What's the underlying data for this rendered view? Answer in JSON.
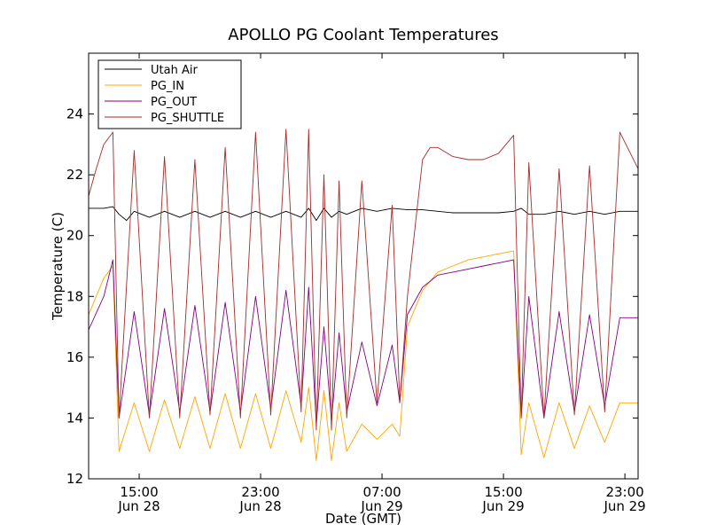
{
  "chart_data": {
    "type": "line",
    "title": "APOLLO PG Coolant Temperatures",
    "xlabel": "Date (GMT)",
    "ylabel": "Temperature (C)",
    "xlim": [
      0,
      36.2
    ],
    "ylim": [
      12,
      26
    ],
    "x_unit": "hours since Jun 28 11:40 GMT",
    "yticks": [
      12,
      14,
      16,
      18,
      20,
      22,
      24
    ],
    "xticks": [
      {
        "x": 3.33,
        "time": "15:00",
        "date": "Jun 28"
      },
      {
        "x": 11.33,
        "time": "23:00",
        "date": "Jun 28"
      },
      {
        "x": 19.33,
        "time": "07:00",
        "date": "Jun 29"
      },
      {
        "x": 27.33,
        "time": "15:00",
        "date": "Jun 29"
      },
      {
        "x": 35.33,
        "time": "23:00",
        "date": "Jun 29"
      }
    ],
    "legend": {
      "placement": "top-left"
    },
    "series": [
      {
        "name": "Utah Air",
        "color": "#000000",
        "x": [
          0,
          1.0,
          1.6,
          2.0,
          2.5,
          3.0,
          4.0,
          5.0,
          6.0,
          7.0,
          8.0,
          9.0,
          10.0,
          11.0,
          12.0,
          13.0,
          14.0,
          14.5,
          15.0,
          15.5,
          16.0,
          16.5,
          17.0,
          18.0,
          19.0,
          20.0,
          21.0,
          22.0,
          23.0,
          24.0,
          25.0,
          26.0,
          27.0,
          28.0,
          28.5,
          29.0,
          30.0,
          31.0,
          32.0,
          33.0,
          34.0,
          35.0,
          36.2
        ],
        "y": [
          20.9,
          20.9,
          20.95,
          20.7,
          20.5,
          20.8,
          20.6,
          20.8,
          20.6,
          20.8,
          20.6,
          20.8,
          20.6,
          20.8,
          20.6,
          20.8,
          20.6,
          20.9,
          20.5,
          20.9,
          20.6,
          20.8,
          20.7,
          20.9,
          20.8,
          20.9,
          20.85,
          20.85,
          20.8,
          20.75,
          20.75,
          20.75,
          20.75,
          20.8,
          20.9,
          20.7,
          20.7,
          20.8,
          20.7,
          20.8,
          20.7,
          20.8,
          20.8
        ]
      },
      {
        "name": "PG_IN",
        "color": "#ffa500",
        "x": [
          0,
          1.0,
          1.6,
          2.0,
          3.0,
          4.0,
          5.0,
          6.0,
          7.0,
          8.0,
          9.0,
          10.0,
          11.0,
          12.0,
          13.0,
          14.0,
          14.5,
          15.0,
          15.5,
          16.0,
          16.5,
          17.0,
          18.0,
          19.0,
          20.0,
          20.5,
          21.0,
          22.0,
          23.0,
          24.0,
          25.0,
          26.0,
          27.0,
          28.0,
          28.5,
          29.0,
          30.0,
          31.0,
          32.0,
          33.0,
          34.0,
          35.0,
          36.2
        ],
        "y": [
          17.4,
          18.6,
          19.0,
          12.9,
          14.5,
          12.9,
          14.6,
          13.0,
          14.7,
          13.0,
          14.8,
          13.0,
          14.8,
          13.0,
          14.9,
          13.2,
          15.0,
          12.6,
          14.9,
          12.6,
          14.5,
          12.9,
          13.8,
          13.3,
          13.8,
          13.4,
          17.0,
          18.2,
          18.8,
          19.0,
          19.2,
          19.3,
          19.4,
          19.5,
          12.8,
          14.5,
          12.7,
          14.5,
          13.0,
          14.4,
          13.2,
          14.5,
          14.5
        ]
      },
      {
        "name": "PG_OUT",
        "color": "#800080",
        "x": [
          0,
          1.0,
          1.6,
          2.0,
          3.0,
          4.0,
          5.0,
          6.0,
          7.0,
          8.0,
          9.0,
          10.0,
          11.0,
          12.0,
          13.0,
          14.0,
          14.5,
          15.0,
          15.5,
          16.0,
          16.5,
          17.0,
          18.0,
          19.0,
          20.0,
          20.5,
          21.0,
          22.0,
          23.0,
          24.0,
          25.0,
          26.0,
          27.0,
          28.0,
          28.5,
          29.0,
          30.0,
          31.0,
          32.0,
          33.0,
          34.0,
          35.0,
          36.2
        ],
        "y": [
          16.9,
          18.0,
          19.2,
          14.0,
          17.5,
          14.1,
          17.6,
          14.2,
          17.7,
          14.2,
          17.8,
          14.2,
          18.0,
          14.3,
          18.2,
          14.4,
          18.3,
          13.8,
          17.0,
          13.9,
          16.8,
          14.2,
          16.5,
          14.4,
          16.4,
          14.5,
          17.4,
          18.3,
          18.7,
          18.8,
          18.9,
          19.0,
          19.1,
          19.2,
          14.0,
          18.0,
          14.0,
          17.5,
          14.2,
          17.4,
          14.4,
          17.3,
          17.3
        ]
      },
      {
        "name": "PG_SHUTTLE",
        "color": "#a52a2a",
        "x": [
          0,
          0.5,
          1.0,
          1.6,
          2.0,
          3.0,
          4.0,
          5.0,
          6.0,
          7.0,
          8.0,
          9.0,
          10.0,
          11.0,
          12.0,
          13.0,
          14.0,
          14.5,
          15.0,
          15.5,
          16.0,
          16.5,
          17.0,
          18.0,
          19.0,
          20.0,
          20.5,
          21.0,
          22.0,
          22.5,
          23.0,
          24.0,
          25.0,
          26.0,
          27.0,
          28.0,
          28.5,
          29.0,
          30.0,
          31.0,
          32.0,
          33.0,
          34.0,
          35.0,
          36.2
        ],
        "y": [
          21.3,
          22.2,
          23.0,
          23.4,
          14.0,
          22.8,
          14.0,
          22.6,
          14.0,
          22.5,
          14.1,
          22.9,
          14.0,
          23.4,
          14.1,
          23.5,
          14.2,
          23.5,
          13.6,
          22.0,
          13.6,
          21.8,
          14.0,
          21.8,
          14.5,
          21.0,
          14.5,
          18.0,
          22.5,
          22.9,
          22.9,
          22.6,
          22.5,
          22.5,
          22.7,
          23.3,
          14.0,
          22.4,
          14.0,
          22.2,
          14.1,
          22.3,
          14.2,
          23.4,
          22.2
        ]
      }
    ]
  }
}
